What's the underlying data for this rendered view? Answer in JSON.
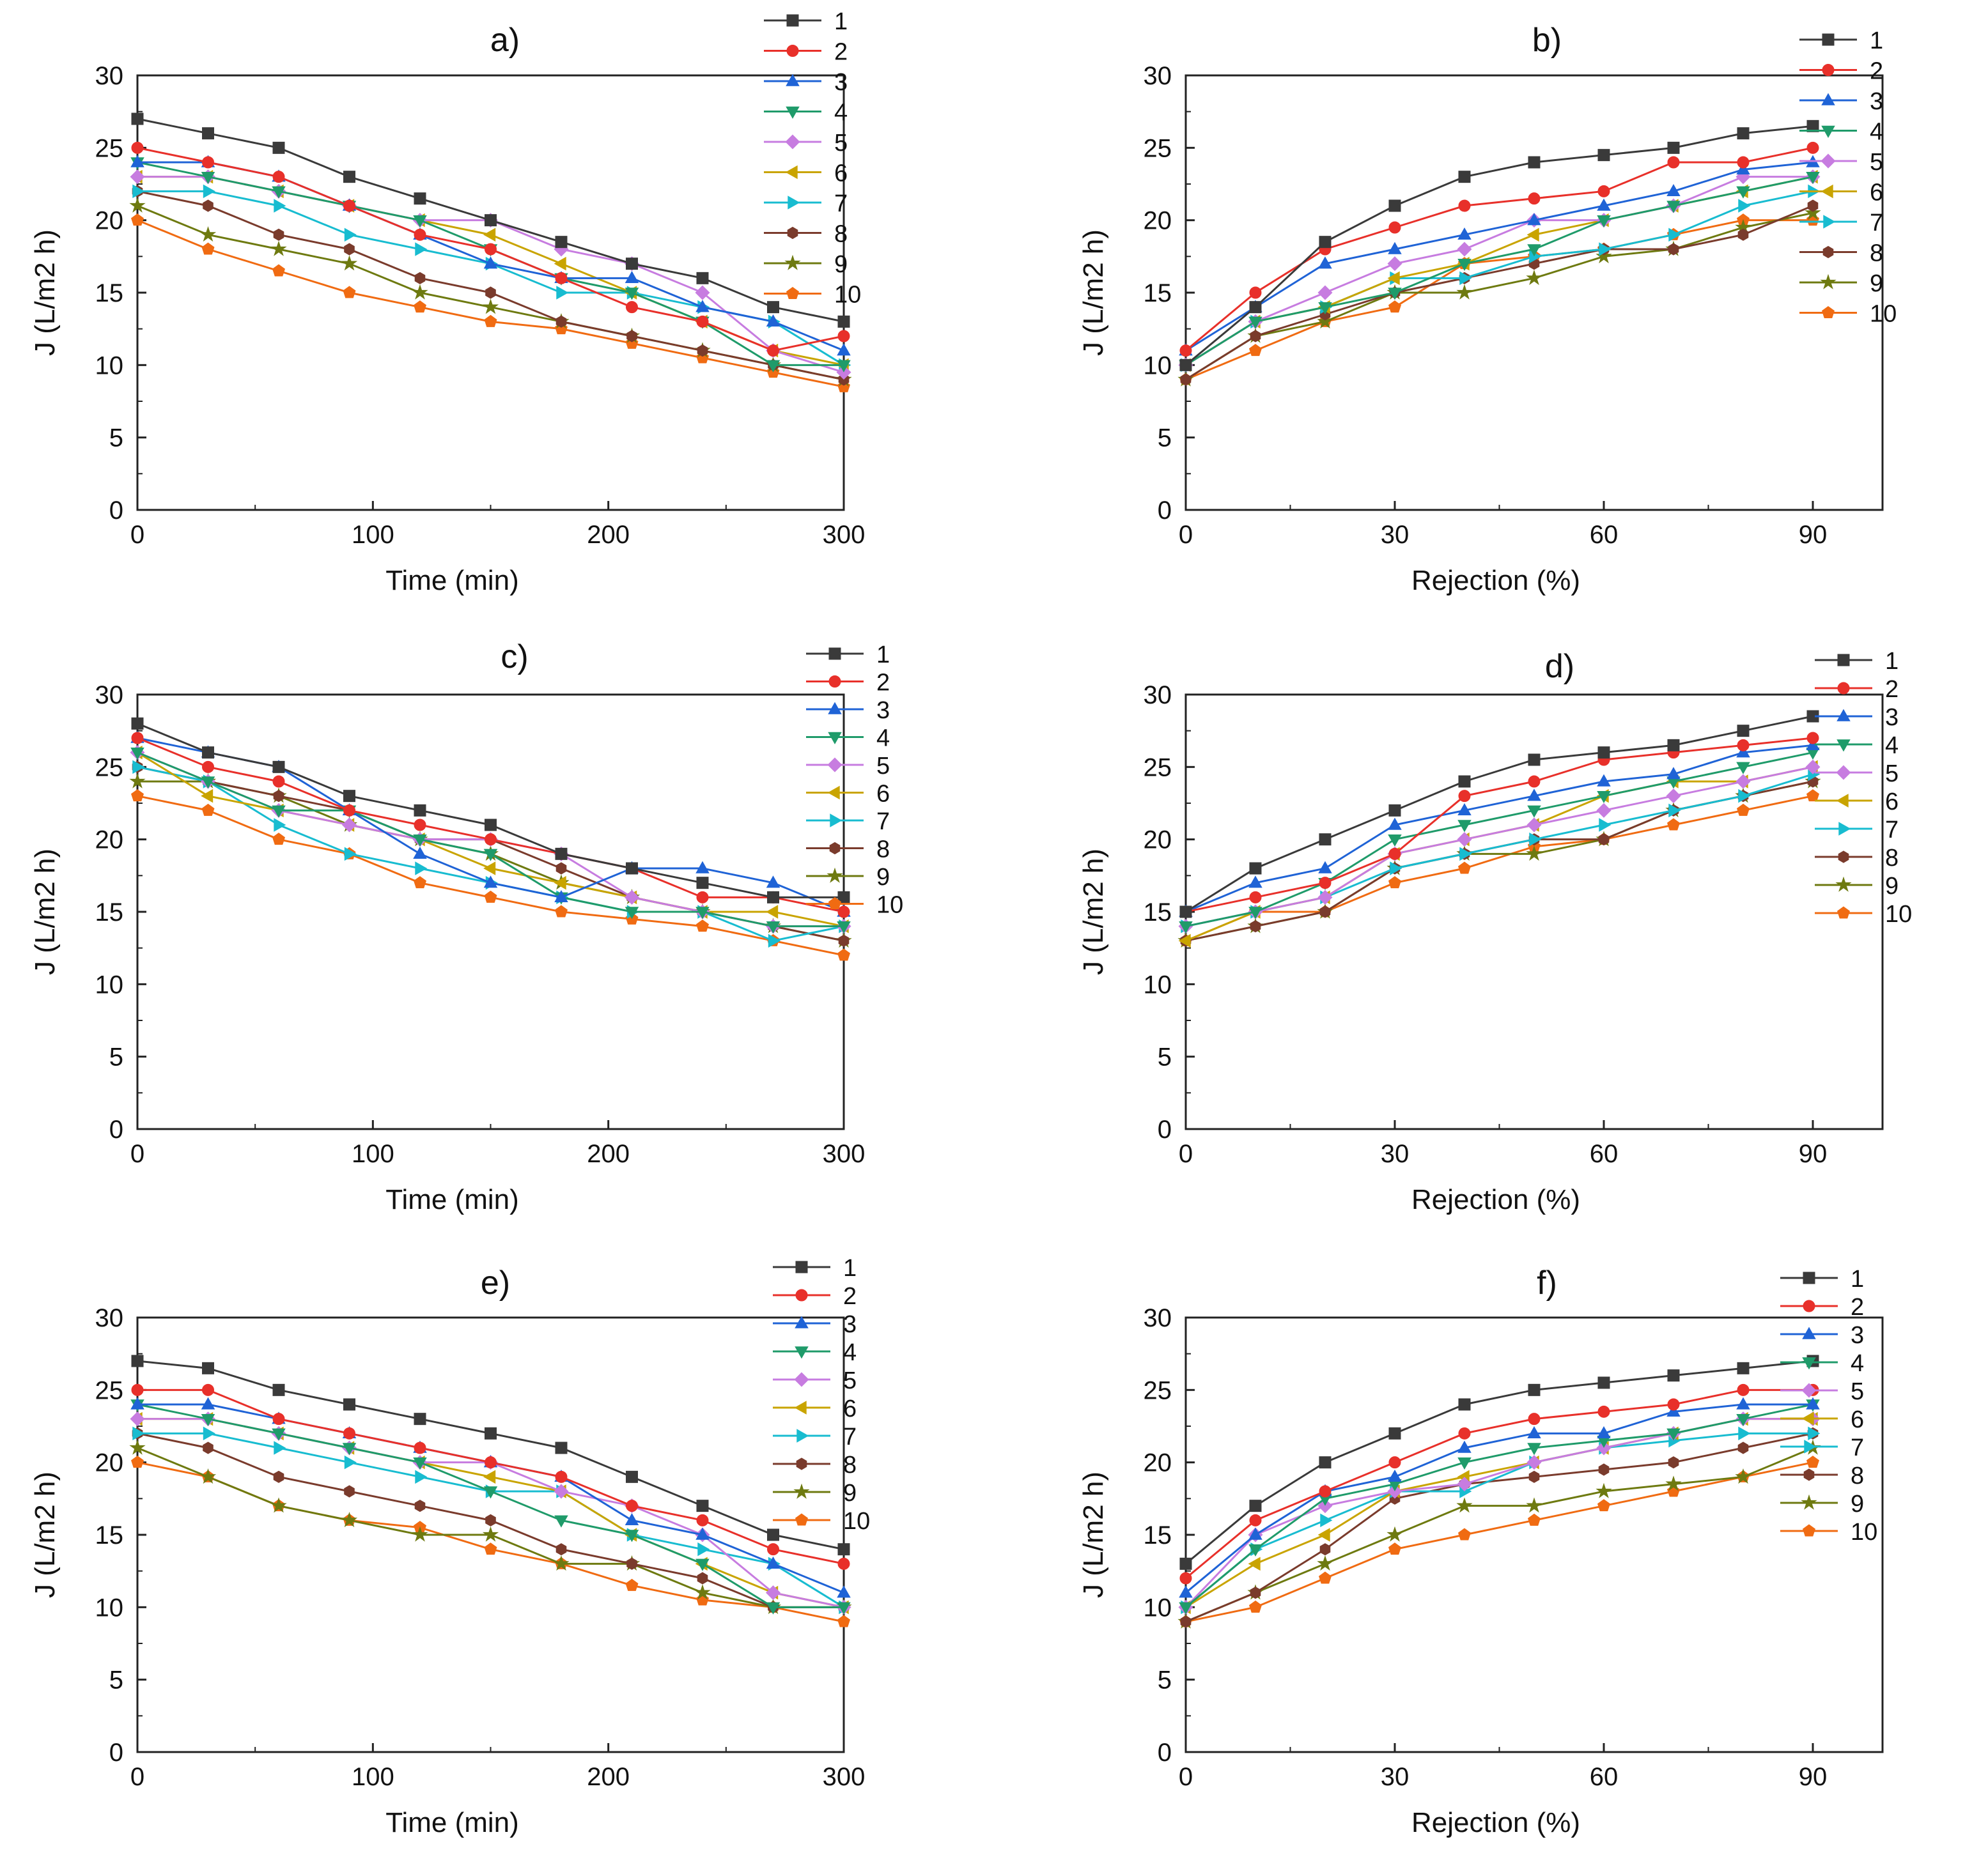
{
  "figure": {
    "background": "#ffffff"
  },
  "series_styles": [
    {
      "name": "1",
      "color": "#3a3a3a",
      "marker": "square"
    },
    {
      "name": "2",
      "color": "#e8302a",
      "marker": "circle"
    },
    {
      "name": "3",
      "color": "#1f63d6",
      "marker": "triangle-up"
    },
    {
      "name": "4",
      "color": "#1f9b6a",
      "marker": "triangle-down"
    },
    {
      "name": "5",
      "color": "#c77ce0",
      "marker": "diamond"
    },
    {
      "name": "6",
      "color": "#c9a400",
      "marker": "triangle-left"
    },
    {
      "name": "7",
      "color": "#18bcd0",
      "marker": "triangle-right"
    },
    {
      "name": "8",
      "color": "#7a3b2c",
      "marker": "hexagon"
    },
    {
      "name": "9",
      "color": "#6e7a10",
      "marker": "star"
    },
    {
      "name": "10",
      "color": "#f06b12",
      "marker": "pentagon"
    }
  ],
  "chart_data": [
    {
      "id": "a",
      "title": "a)",
      "type": "line",
      "xlabel": "Time (min)",
      "ylabel": "J (L/m2 h)",
      "xlim": [
        0,
        300
      ],
      "ylim": [
        0,
        30
      ],
      "xticks": [
        0,
        100,
        200,
        300
      ],
      "yticks": [
        0,
        5,
        10,
        15,
        20,
        25,
        30
      ],
      "legend": "top-right",
      "x": [
        0,
        30,
        60,
        90,
        120,
        150,
        180,
        210,
        240,
        270,
        300
      ],
      "series": [
        {
          "name": "1",
          "values": [
            27,
            26,
            25,
            23,
            21.5,
            20,
            18.5,
            17,
            16,
            14,
            13
          ]
        },
        {
          "name": "2",
          "values": [
            25,
            24,
            23,
            21,
            19,
            18,
            16,
            14,
            13,
            11,
            12
          ]
        },
        {
          "name": "3",
          "values": [
            24,
            24,
            23,
            21,
            19,
            17,
            16,
            16,
            14,
            13,
            11
          ]
        },
        {
          "name": "4",
          "values": [
            24,
            23,
            22,
            21,
            20,
            18,
            16,
            15,
            13,
            10,
            10
          ]
        },
        {
          "name": "5",
          "values": [
            23,
            23,
            22,
            21,
            20,
            20,
            18,
            17,
            15,
            11,
            9.5
          ]
        },
        {
          "name": "6",
          "values": [
            23,
            23,
            22,
            21,
            20,
            19,
            17,
            15,
            13,
            11,
            10
          ]
        },
        {
          "name": "7",
          "values": [
            22,
            22,
            21,
            19,
            18,
            17,
            15,
            15,
            14,
            13,
            10
          ]
        },
        {
          "name": "8",
          "values": [
            22,
            21,
            19,
            18,
            16,
            15,
            13,
            12,
            11,
            10,
            9
          ]
        },
        {
          "name": "9",
          "values": [
            21,
            19,
            18,
            17,
            15,
            14,
            13,
            12,
            11,
            10,
            9
          ]
        },
        {
          "name": "10",
          "values": [
            20,
            18,
            16.5,
            15,
            14,
            13,
            12.5,
            11.5,
            10.5,
            9.5,
            8.5
          ]
        }
      ]
    },
    {
      "id": "b",
      "title": "b)",
      "type": "line",
      "xlabel": "Rejection (%)",
      "ylabel": "J (L/m2 h)",
      "xlim": [
        0,
        100
      ],
      "ylim": [
        0,
        30
      ],
      "xticks": [
        0,
        30,
        60,
        90
      ],
      "yticks": [
        0,
        5,
        10,
        15,
        20,
        25,
        30
      ],
      "legend": "top-right",
      "x": [
        0,
        10,
        20,
        30,
        40,
        50,
        60,
        70,
        80,
        90
      ],
      "series": [
        {
          "name": "1",
          "values": [
            10,
            14,
            18.5,
            21,
            23,
            24,
            24.5,
            25,
            26,
            26.5
          ]
        },
        {
          "name": "2",
          "values": [
            11,
            15,
            18,
            19.5,
            21,
            21.5,
            22,
            24,
            24,
            25
          ]
        },
        {
          "name": "3",
          "values": [
            11,
            14,
            17,
            18,
            19,
            20,
            21,
            22,
            23.5,
            24
          ]
        },
        {
          "name": "4",
          "values": [
            10,
            13,
            14,
            15,
            17,
            18,
            20,
            21,
            22,
            23
          ]
        },
        {
          "name": "5",
          "values": [
            10,
            13,
            15,
            17,
            18,
            20,
            20,
            21,
            23,
            23
          ]
        },
        {
          "name": "6",
          "values": [
            10,
            13,
            14,
            16,
            17,
            19,
            20,
            21,
            22,
            23
          ]
        },
        {
          "name": "7",
          "values": [
            10,
            13,
            14,
            16,
            16,
            17.5,
            18,
            19,
            21,
            22
          ]
        },
        {
          "name": "8",
          "values": [
            9,
            12,
            13.5,
            15,
            16,
            17,
            18,
            18,
            19,
            21
          ]
        },
        {
          "name": "9",
          "values": [
            9,
            12,
            13,
            15,
            15,
            16,
            17.5,
            18,
            19.5,
            20.5
          ]
        },
        {
          "name": "10",
          "values": [
            9,
            11,
            13,
            14,
            17,
            17.5,
            18,
            19,
            20,
            20
          ]
        }
      ]
    },
    {
      "id": "c",
      "title": "c)",
      "type": "line",
      "xlabel": "Time (min)",
      "ylabel": "J (L/m2 h)",
      "xlim": [
        0,
        300
      ],
      "ylim": [
        0,
        30
      ],
      "xticks": [
        0,
        100,
        200,
        300
      ],
      "yticks": [
        0,
        5,
        10,
        15,
        20,
        25,
        30
      ],
      "legend": "top-right",
      "x": [
        0,
        30,
        60,
        90,
        120,
        150,
        180,
        210,
        240,
        270,
        300
      ],
      "series": [
        {
          "name": "1",
          "values": [
            28,
            26,
            25,
            23,
            22,
            21,
            19,
            18,
            17,
            16,
            16
          ]
        },
        {
          "name": "2",
          "values": [
            27,
            25,
            24,
            22,
            21,
            20,
            19,
            18,
            16,
            16,
            15
          ]
        },
        {
          "name": "3",
          "values": [
            27,
            26,
            25,
            22,
            19,
            17,
            16,
            18,
            18,
            17,
            15
          ]
        },
        {
          "name": "4",
          "values": [
            26,
            24,
            22,
            22,
            20,
            19,
            16,
            15,
            15,
            14,
            14
          ]
        },
        {
          "name": "5",
          "values": [
            26,
            24,
            22,
            21,
            20,
            20,
            19,
            16,
            15,
            14,
            14
          ]
        },
        {
          "name": "6",
          "values": [
            26,
            23,
            22,
            21,
            20,
            18,
            17,
            16,
            15,
            15,
            14
          ]
        },
        {
          "name": "7",
          "values": [
            25,
            24,
            21,
            19,
            18,
            17,
            16,
            15,
            15,
            13,
            14
          ]
        },
        {
          "name": "8",
          "values": [
            25,
            24,
            23,
            22,
            20,
            20,
            18,
            16,
            15,
            14,
            13
          ]
        },
        {
          "name": "9",
          "values": [
            24,
            24,
            23,
            21,
            20,
            19,
            17,
            16,
            15,
            14,
            13
          ]
        },
        {
          "name": "10",
          "values": [
            23,
            22,
            20,
            19,
            17,
            16,
            15,
            14.5,
            14,
            13,
            12
          ]
        }
      ]
    },
    {
      "id": "d",
      "title": "d)",
      "type": "line",
      "xlabel": "Rejection (%)",
      "ylabel": "J (L/m2 h)",
      "xlim": [
        0,
        100
      ],
      "ylim": [
        0,
        30
      ],
      "xticks": [
        0,
        30,
        60,
        90
      ],
      "yticks": [
        0,
        5,
        10,
        15,
        20,
        25,
        30
      ],
      "legend": "top-right",
      "x": [
        0,
        10,
        20,
        30,
        40,
        50,
        60,
        70,
        80,
        90
      ],
      "series": [
        {
          "name": "1",
          "values": [
            15,
            18,
            20,
            22,
            24,
            25.5,
            26,
            26.5,
            27.5,
            28.5
          ]
        },
        {
          "name": "2",
          "values": [
            15,
            16,
            17,
            19,
            23,
            24,
            25.5,
            26,
            26.5,
            27
          ]
        },
        {
          "name": "3",
          "values": [
            15,
            17,
            18,
            21,
            22,
            23,
            24,
            24.5,
            26,
            26.5
          ]
        },
        {
          "name": "4",
          "values": [
            14,
            15,
            17,
            20,
            21,
            22,
            23,
            24,
            25,
            26
          ]
        },
        {
          "name": "5",
          "values": [
            14,
            15,
            16,
            19,
            20,
            21,
            22,
            23,
            24,
            25
          ]
        },
        {
          "name": "6",
          "values": [
            13,
            15,
            16,
            19,
            20,
            21,
            23,
            24,
            24,
            25
          ]
        },
        {
          "name": "7",
          "values": [
            14,
            15,
            16,
            18,
            19,
            20,
            21,
            22,
            23,
            24.5
          ]
        },
        {
          "name": "8",
          "values": [
            13,
            14,
            15,
            18,
            19,
            20,
            20,
            22,
            23,
            24
          ]
        },
        {
          "name": "9",
          "values": [
            13,
            14,
            15,
            18,
            19,
            19,
            20,
            22,
            23,
            24
          ]
        },
        {
          "name": "10",
          "values": [
            13,
            15,
            15,
            17,
            18,
            19.5,
            20,
            21,
            22,
            23
          ]
        }
      ]
    },
    {
      "id": "e",
      "title": "e)",
      "type": "line",
      "xlabel": "Time (min)",
      "ylabel": "J (L/m2 h)",
      "xlim": [
        0,
        300
      ],
      "ylim": [
        0,
        30
      ],
      "xticks": [
        0,
        100,
        200,
        300
      ],
      "yticks": [
        0,
        5,
        10,
        15,
        20,
        25,
        30
      ],
      "legend": "top-right",
      "x": [
        0,
        30,
        60,
        90,
        120,
        150,
        180,
        210,
        240,
        270,
        300
      ],
      "series": [
        {
          "name": "1",
          "values": [
            27,
            26.5,
            25,
            24,
            23,
            22,
            21,
            19,
            17,
            15,
            14
          ]
        },
        {
          "name": "2",
          "values": [
            25,
            25,
            23,
            22,
            21,
            20,
            19,
            17,
            16,
            14,
            13
          ]
        },
        {
          "name": "3",
          "values": [
            24,
            24,
            23,
            22,
            21,
            20,
            19,
            16,
            15,
            13,
            11
          ]
        },
        {
          "name": "4",
          "values": [
            24,
            23,
            22,
            21,
            20,
            18,
            16,
            15,
            13,
            10,
            10
          ]
        },
        {
          "name": "5",
          "values": [
            23,
            23,
            22,
            21,
            20,
            20,
            18,
            17,
            15,
            11,
            10
          ]
        },
        {
          "name": "6",
          "values": [
            23,
            23,
            22,
            21,
            20,
            19,
            18,
            15,
            13,
            11,
            10
          ]
        },
        {
          "name": "7",
          "values": [
            22,
            22,
            21,
            20,
            19,
            18,
            18,
            15,
            14,
            13,
            10
          ]
        },
        {
          "name": "8",
          "values": [
            22,
            21,
            19,
            18,
            17,
            16,
            14,
            13,
            12,
            10,
            10
          ]
        },
        {
          "name": "9",
          "values": [
            21,
            19,
            17,
            16,
            15,
            15,
            13,
            13,
            11,
            10,
            10
          ]
        },
        {
          "name": "10",
          "values": [
            20,
            19,
            17,
            16,
            15.5,
            14,
            13,
            11.5,
            10.5,
            10,
            9
          ]
        }
      ]
    },
    {
      "id": "f",
      "title": "f)",
      "type": "line",
      "xlabel": "Rejection (%)",
      "ylabel": "J (L/m2 h)",
      "xlim": [
        0,
        100
      ],
      "ylim": [
        0,
        30
      ],
      "xticks": [
        0,
        30,
        60,
        90
      ],
      "yticks": [
        0,
        5,
        10,
        15,
        20,
        25,
        30
      ],
      "legend": "top-right",
      "x": [
        0,
        10,
        20,
        30,
        40,
        50,
        60,
        70,
        80,
        90
      ],
      "series": [
        {
          "name": "1",
          "values": [
            13,
            17,
            20,
            22,
            24,
            25,
            25.5,
            26,
            26.5,
            27
          ]
        },
        {
          "name": "2",
          "values": [
            12,
            16,
            18,
            20,
            22,
            23,
            23.5,
            24,
            25,
            25
          ]
        },
        {
          "name": "3",
          "values": [
            11,
            15,
            18,
            19,
            21,
            22,
            22,
            23.5,
            24,
            24
          ]
        },
        {
          "name": "4",
          "values": [
            10,
            14,
            17.5,
            18.5,
            20,
            21,
            21.5,
            22,
            23,
            24
          ]
        },
        {
          "name": "5",
          "values": [
            10,
            15,
            17,
            18,
            18.5,
            20,
            21,
            22,
            23,
            23
          ]
        },
        {
          "name": "6",
          "values": [
            10,
            13,
            15,
            18,
            19,
            20,
            21,
            22,
            23,
            23
          ]
        },
        {
          "name": "7",
          "values": [
            10,
            14,
            16,
            18,
            18,
            20,
            21,
            21.5,
            22,
            22
          ]
        },
        {
          "name": "8",
          "values": [
            9,
            11,
            14,
            17.5,
            18.5,
            19,
            19.5,
            20,
            21,
            22
          ]
        },
        {
          "name": "9",
          "values": [
            9,
            11,
            13,
            15,
            17,
            17,
            18,
            18.5,
            19,
            21
          ]
        },
        {
          "name": "10",
          "values": [
            9,
            10,
            12,
            14,
            15,
            16,
            17,
            18,
            19,
            20
          ]
        }
      ]
    }
  ]
}
